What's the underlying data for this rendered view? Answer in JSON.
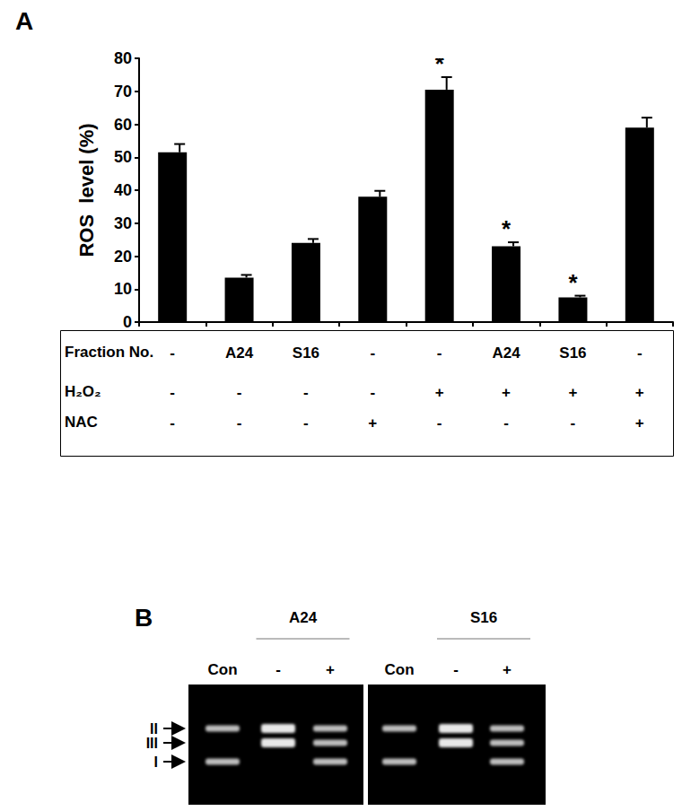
{
  "chart_data": {
    "type": "bar",
    "title": "A",
    "y_label": "ROS  level (%)",
    "categories": [
      null,
      null,
      null,
      null,
      null,
      null,
      null,
      null
    ],
    "values": [
      51.5,
      13.5,
      24,
      38,
      70.5,
      23,
      7.5,
      59
    ],
    "errors": [
      2.5,
      0.8,
      1.2,
      1.8,
      3.8,
      1.2,
      0.5,
      3
    ],
    "annotations": [
      null,
      null,
      null,
      null,
      "*",
      "*",
      "*",
      null
    ],
    "color": "#000000",
    "ylim": [
      0,
      80
    ],
    "yticks": [
      0,
      10,
      20,
      30,
      40,
      50,
      60,
      70,
      80
    ],
    "grid": false,
    "conditions": [
      {
        "label": "Fraction No.",
        "values": [
          "-",
          "A24",
          "S16",
          "-",
          "-",
          "A24",
          "S16",
          "-"
        ]
      },
      {
        "label": "H₂O₂",
        "values": [
          "-",
          "-",
          "-",
          "-",
          "+",
          "+",
          "+",
          "+"
        ]
      },
      {
        "label": "NAC",
        "values": [
          "-",
          "-",
          "-",
          "+",
          "-",
          "-",
          "-",
          "+"
        ]
      }
    ]
  },
  "gel": {
    "title": "B",
    "band_labels": [
      "II",
      "III",
      "I"
    ],
    "panels": [
      {
        "label": "A24",
        "lanes": [
          {
            "label": "Con",
            "bands": [
              "II",
              "I"
            ]
          },
          {
            "label": "-",
            "bands": [
              "II",
              "III"
            ]
          },
          {
            "label": "+",
            "bands": [
              "II",
              "III",
              "I"
            ]
          }
        ]
      },
      {
        "label": "S16",
        "lanes": [
          {
            "label": "Con",
            "bands": [
              "II",
              "I"
            ]
          },
          {
            "label": "-",
            "bands": [
              "II",
              "III"
            ]
          },
          {
            "label": "+",
            "bands": [
              "II",
              "III",
              "I"
            ]
          }
        ]
      }
    ]
  }
}
